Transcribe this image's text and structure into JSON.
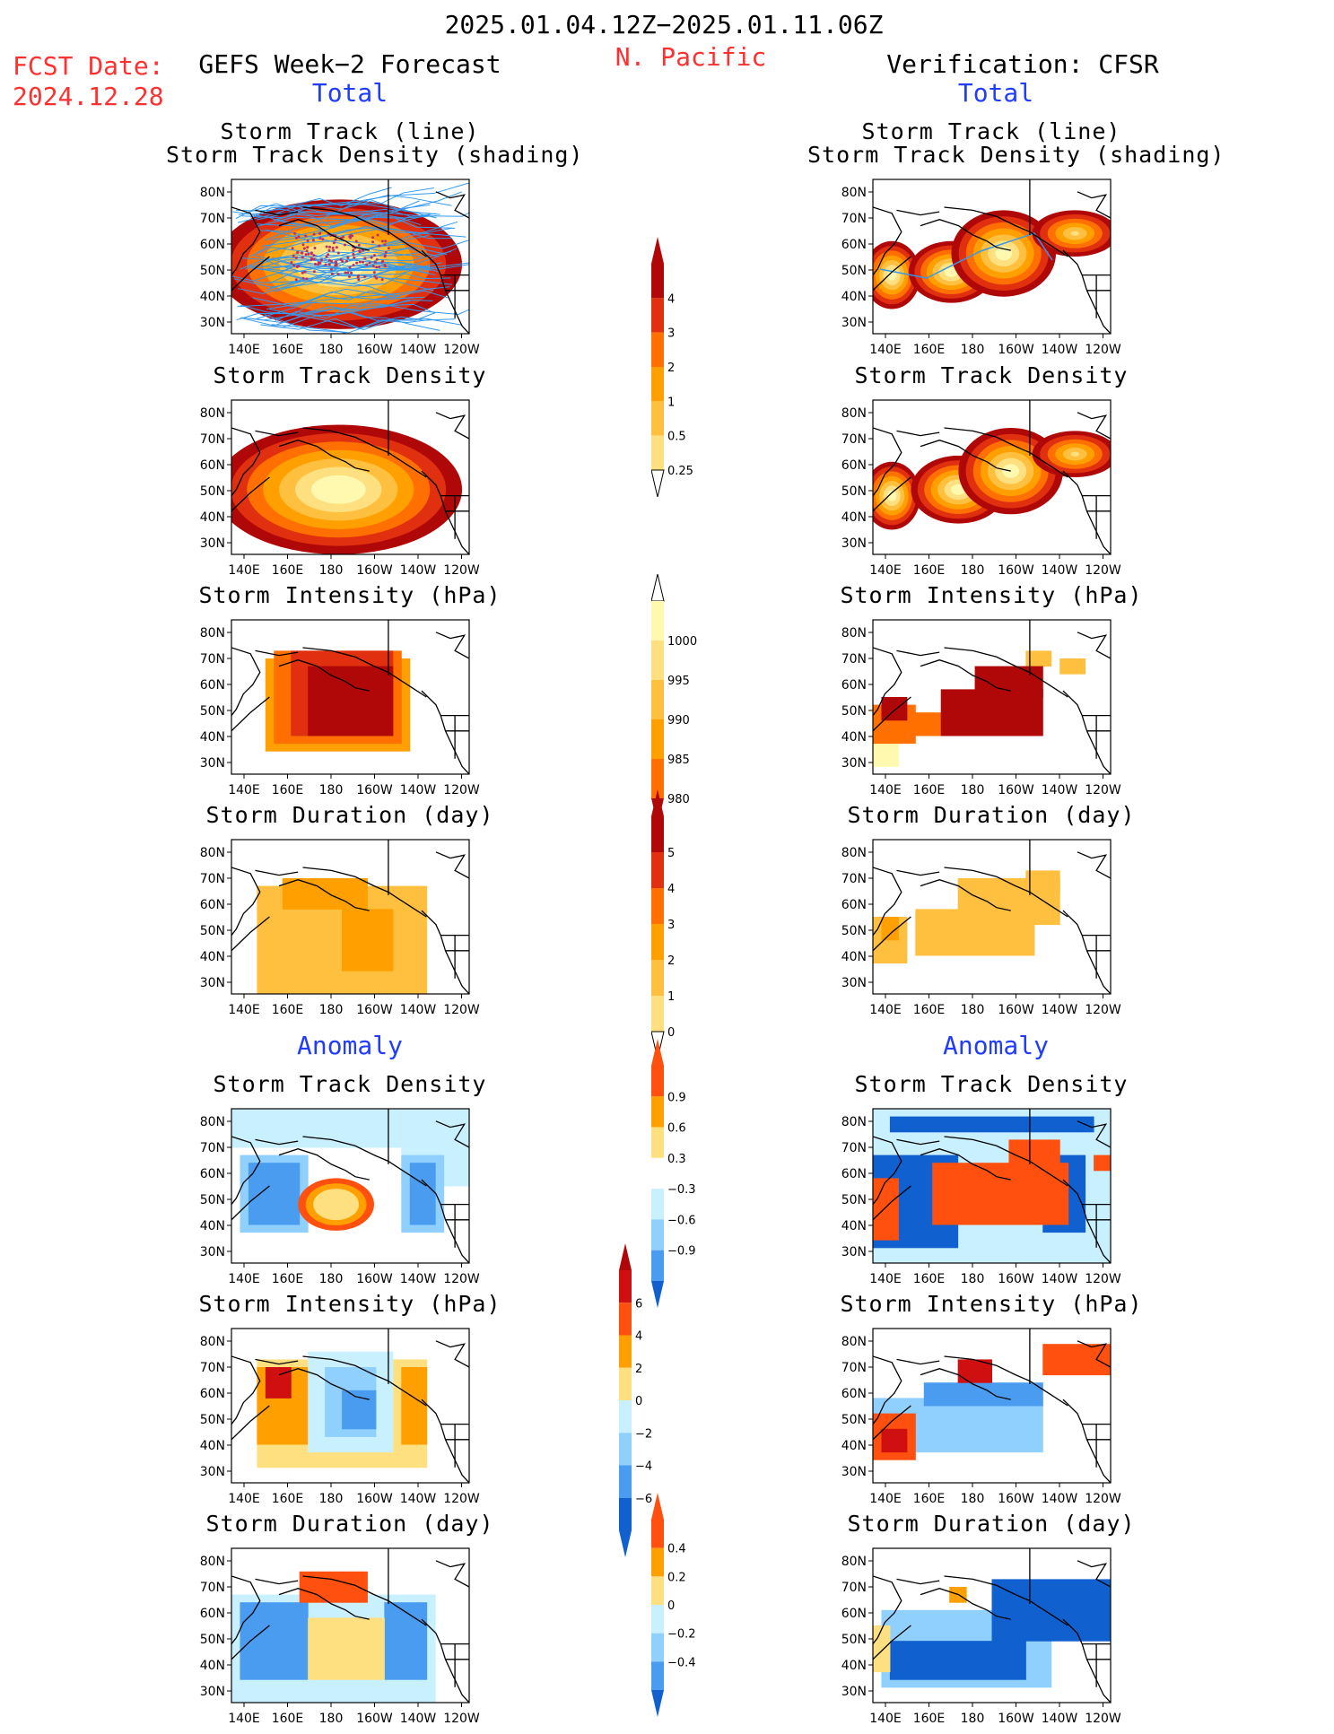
{
  "header": {
    "date_range": "2025.01.04.12Z−2025.01.11.06Z",
    "region": "N. Pacific",
    "fcst_label": "FCST Date:",
    "fcst_date": "2024.12.28",
    "left_title": "GEFS Week−2 Forecast",
    "right_title": "Verification: CFSR",
    "total_label": "Total",
    "anomaly_label": "Anomaly"
  },
  "map_axes": {
    "lat_ticks": [
      "80N",
      "70N",
      "60N",
      "50N",
      "40N",
      "30N"
    ],
    "lon_ticks": [
      "140E",
      "160E",
      "180",
      "160W",
      "140W",
      "120W"
    ]
  },
  "colors": {
    "total_scale": [
      "#fff9b0",
      "#ffe080",
      "#ffc040",
      "#ffa000",
      "#ff7000",
      "#e03010",
      "#b00808"
    ],
    "anom_pos": [
      "#ffe080",
      "#ffa000",
      "#ff5010",
      "#d01010"
    ],
    "anom_neg": [
      "#c8f0ff",
      "#8fd0ff",
      "#4a9cf0",
      "#1060d0"
    ],
    "land": "#000000",
    "track_lines": "#3399ee"
  },
  "panel_titles": {
    "track_line_1": "Storm Track (line)",
    "track_line_2": "Storm Track Density (shading)",
    "density": "Storm Track Density",
    "intensity": "Storm Intensity (hPa)",
    "duration": "Storm Duration (day)"
  },
  "colorbars": {
    "density_total": [
      "4",
      "3",
      "2",
      "1",
      "0.5",
      "0.25"
    ],
    "intensity_total": [
      "1000",
      "995",
      "990",
      "985",
      "980"
    ],
    "duration_total": [
      "5",
      "4",
      "3",
      "2",
      "1",
      "0"
    ],
    "density_anom": [
      "0.9",
      "0.6",
      "0.3",
      "−0.3",
      "−0.6",
      "−0.9"
    ],
    "intensity_anom": [
      "6",
      "4",
      "2",
      "0",
      "−2",
      "−4",
      "−6"
    ],
    "duration_anom": [
      "0.4",
      "0.2",
      "0",
      "−0.2",
      "−0.4"
    ]
  },
  "chart_data": [
    {
      "type": "heatmap",
      "title": "Storm Track (line) / Storm Track Density (shading)",
      "source": "GEFS Week−2 Forecast",
      "section": "Total",
      "colorbar": "density_total"
    },
    {
      "type": "heatmap",
      "title": "Storm Track (line) / Storm Track Density (shading)",
      "source": "Verification: CFSR",
      "section": "Total",
      "colorbar": "density_total"
    },
    {
      "type": "heatmap",
      "title": "Storm Track Density",
      "source": "GEFS Week−2 Forecast",
      "section": "Total",
      "colorbar": "density_total"
    },
    {
      "type": "heatmap",
      "title": "Storm Track Density",
      "source": "Verification: CFSR",
      "section": "Total",
      "colorbar": "density_total"
    },
    {
      "type": "heatmap",
      "title": "Storm Intensity (hPa)",
      "source": "GEFS Week−2 Forecast",
      "section": "Total",
      "colorbar": "intensity_total"
    },
    {
      "type": "heatmap",
      "title": "Storm Intensity (hPa)",
      "source": "Verification: CFSR",
      "section": "Total",
      "colorbar": "intensity_total"
    },
    {
      "type": "heatmap",
      "title": "Storm Duration (day)",
      "source": "GEFS Week−2 Forecast",
      "section": "Total",
      "colorbar": "duration_total"
    },
    {
      "type": "heatmap",
      "title": "Storm Duration (day)",
      "source": "Verification: CFSR",
      "section": "Total",
      "colorbar": "duration_total"
    },
    {
      "type": "heatmap",
      "title": "Storm Track Density",
      "source": "GEFS Week−2 Forecast",
      "section": "Anomaly",
      "colorbar": "density_anom"
    },
    {
      "type": "heatmap",
      "title": "Storm Track Density",
      "source": "Verification: CFSR",
      "section": "Anomaly",
      "colorbar": "density_anom"
    },
    {
      "type": "heatmap",
      "title": "Storm Intensity (hPa)",
      "source": "GEFS Week−2 Forecast",
      "section": "Anomaly",
      "colorbar": "intensity_anom"
    },
    {
      "type": "heatmap",
      "title": "Storm Intensity (hPa)",
      "source": "Verification: CFSR",
      "section": "Anomaly",
      "colorbar": "intensity_anom"
    },
    {
      "type": "heatmap",
      "title": "Storm Duration (day)",
      "source": "GEFS Week−2 Forecast",
      "section": "Anomaly",
      "colorbar": "duration_anom"
    },
    {
      "type": "heatmap",
      "title": "Storm Duration (day)",
      "source": "Verification: CFSR",
      "section": "Anomaly",
      "colorbar": "duration_anom"
    }
  ]
}
